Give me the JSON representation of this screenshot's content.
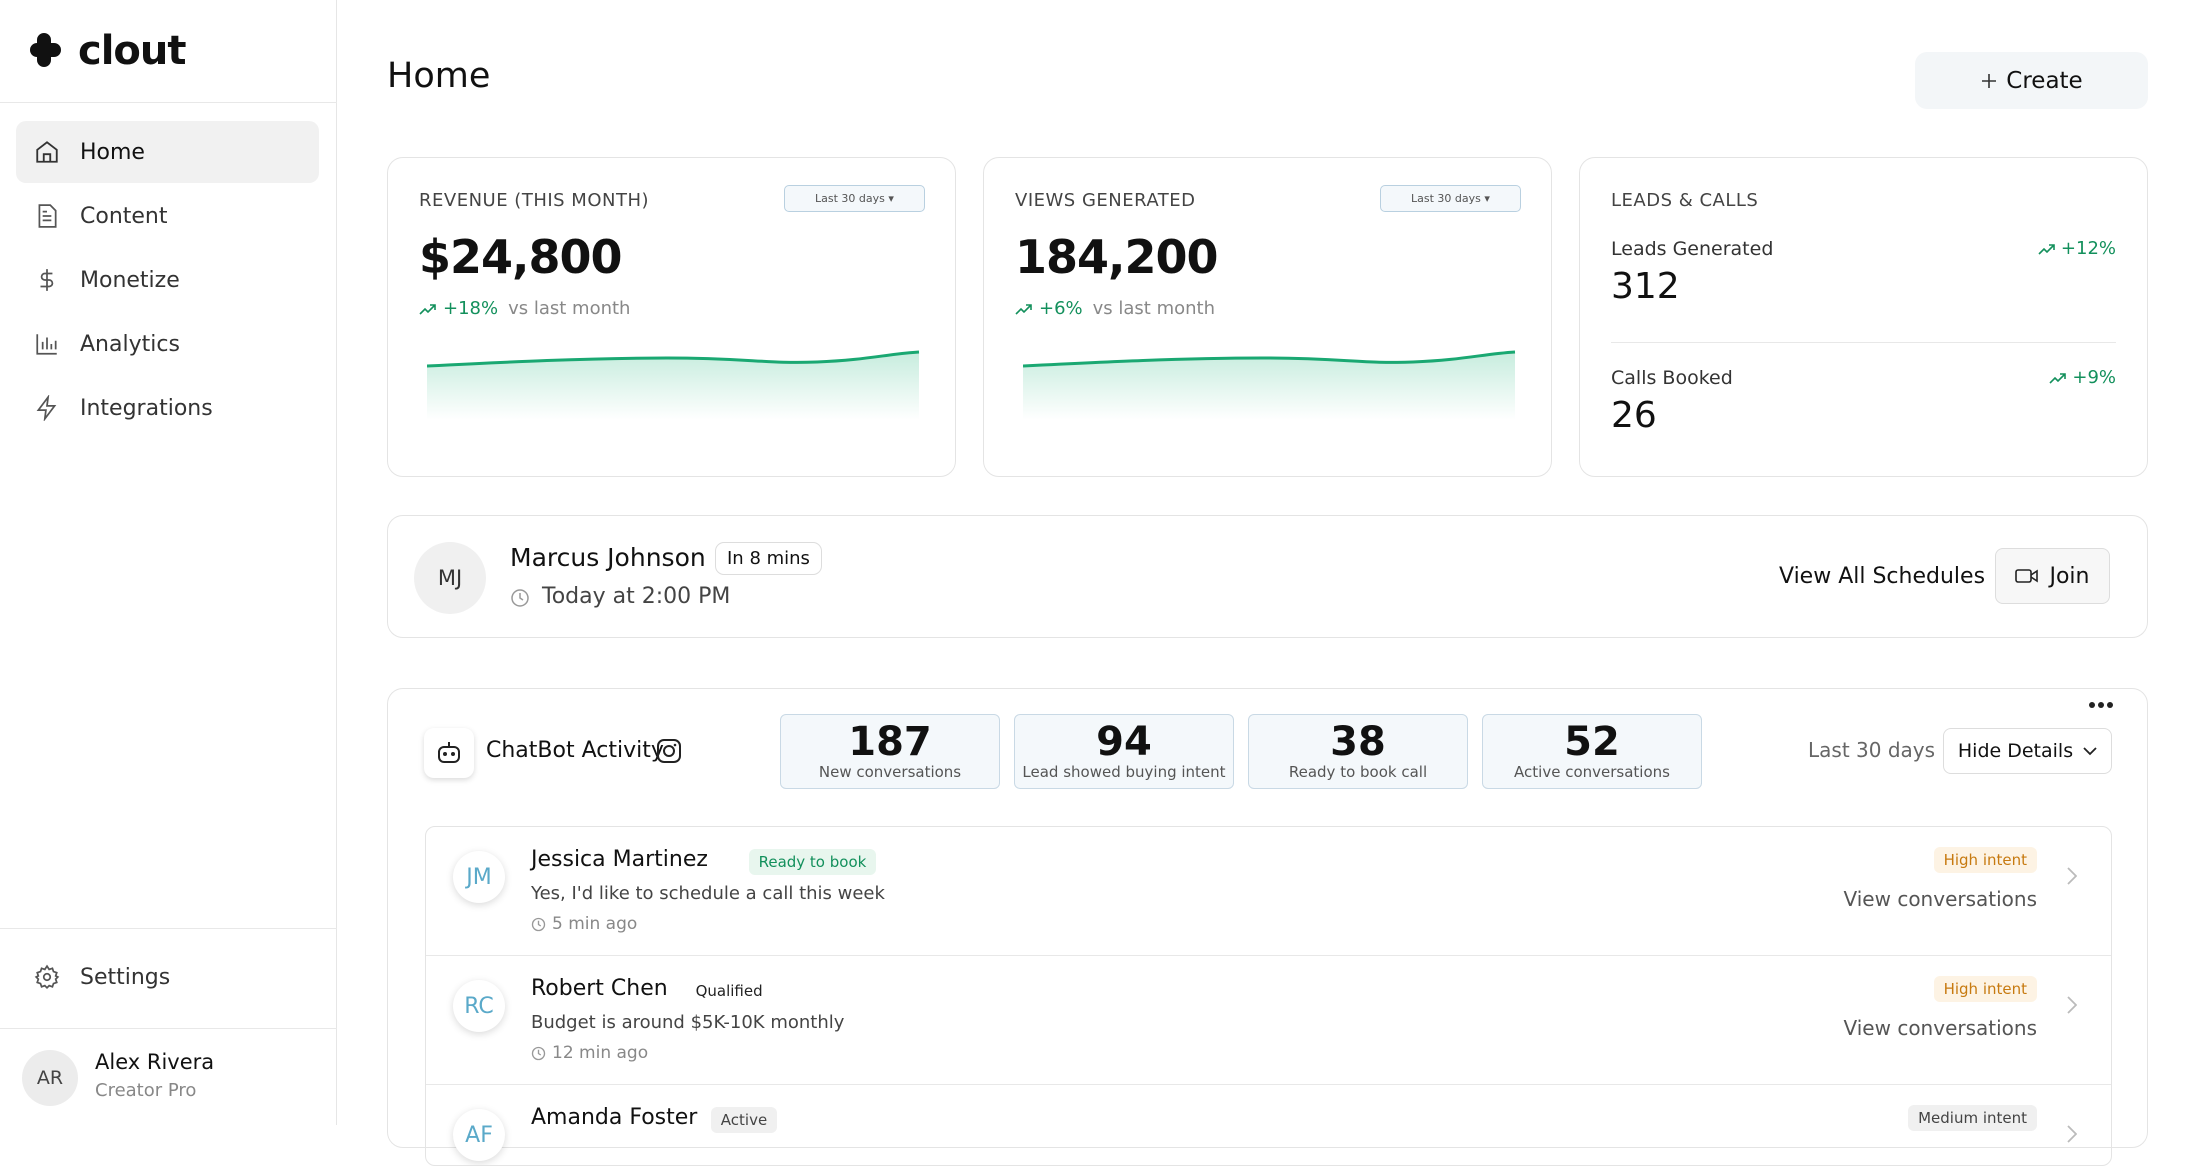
{
  "sidebar": {
    "logo": "clout",
    "nav": [
      "Home",
      "Content",
      "Monetize",
      "Analytics",
      "Integrations"
    ],
    "settings": "Settings",
    "user": {
      "initials": "AR",
      "name": "Alex Rivera",
      "plan": "Creator Pro"
    }
  },
  "header": {
    "title": "Home",
    "create": "Create"
  },
  "cards": [
    {
      "label": "REVENUE (THIS MONTH)",
      "filter": "Last 30 days ▾",
      "value": "$24,800",
      "change": "+18%",
      "note": "vs last month"
    },
    {
      "label": "VIEWS GENERATED",
      "filter": "Last 30 days ▾",
      "value": "184,200",
      "change": "+6%",
      "note": "vs last month"
    }
  ],
  "leads": {
    "label": "LEADS & CALLS",
    "items": [
      {
        "label": "Leads Generated",
        "value": "312",
        "change": "+12%"
      },
      {
        "label": "Calls Booked",
        "value": "26",
        "change": "+9%"
      }
    ]
  },
  "meeting": {
    "initials": "MJ",
    "name": "Marcus Johnson",
    "badge": "In 8 mins",
    "time": "Today at 2:00 PM",
    "view_all": "View All Schedules",
    "join": "Join"
  },
  "chatbot": {
    "title": "ChatBot Activity",
    "stats": [
      {
        "value": "187",
        "label": "New conversations"
      },
      {
        "value": "94",
        "label": "Lead showed buying intent"
      },
      {
        "value": "38",
        "label": "Ready to book call"
      },
      {
        "value": "52",
        "label": "Active conversations"
      }
    ],
    "period": "Last 30 days",
    "toggle": "Hide Details",
    "rows": [
      {
        "initials": "JM",
        "name": "Jessica Martinez",
        "status": "Ready to book",
        "message": "Yes, I'd like to schedule a call this week",
        "time": "5 min ago",
        "intent": "High intent",
        "action": "View conversations"
      },
      {
        "initials": "RC",
        "name": "Robert Chen",
        "status": "Qualified",
        "message": "Budget is around $5K-10K monthly",
        "time": "12 min ago",
        "intent": "High intent",
        "action": "View conversations"
      },
      {
        "initials": "AF",
        "name": "Amanda Foster",
        "status": "Active",
        "message": "",
        "time": "",
        "intent": "Medium intent",
        "action": ""
      }
    ]
  }
}
